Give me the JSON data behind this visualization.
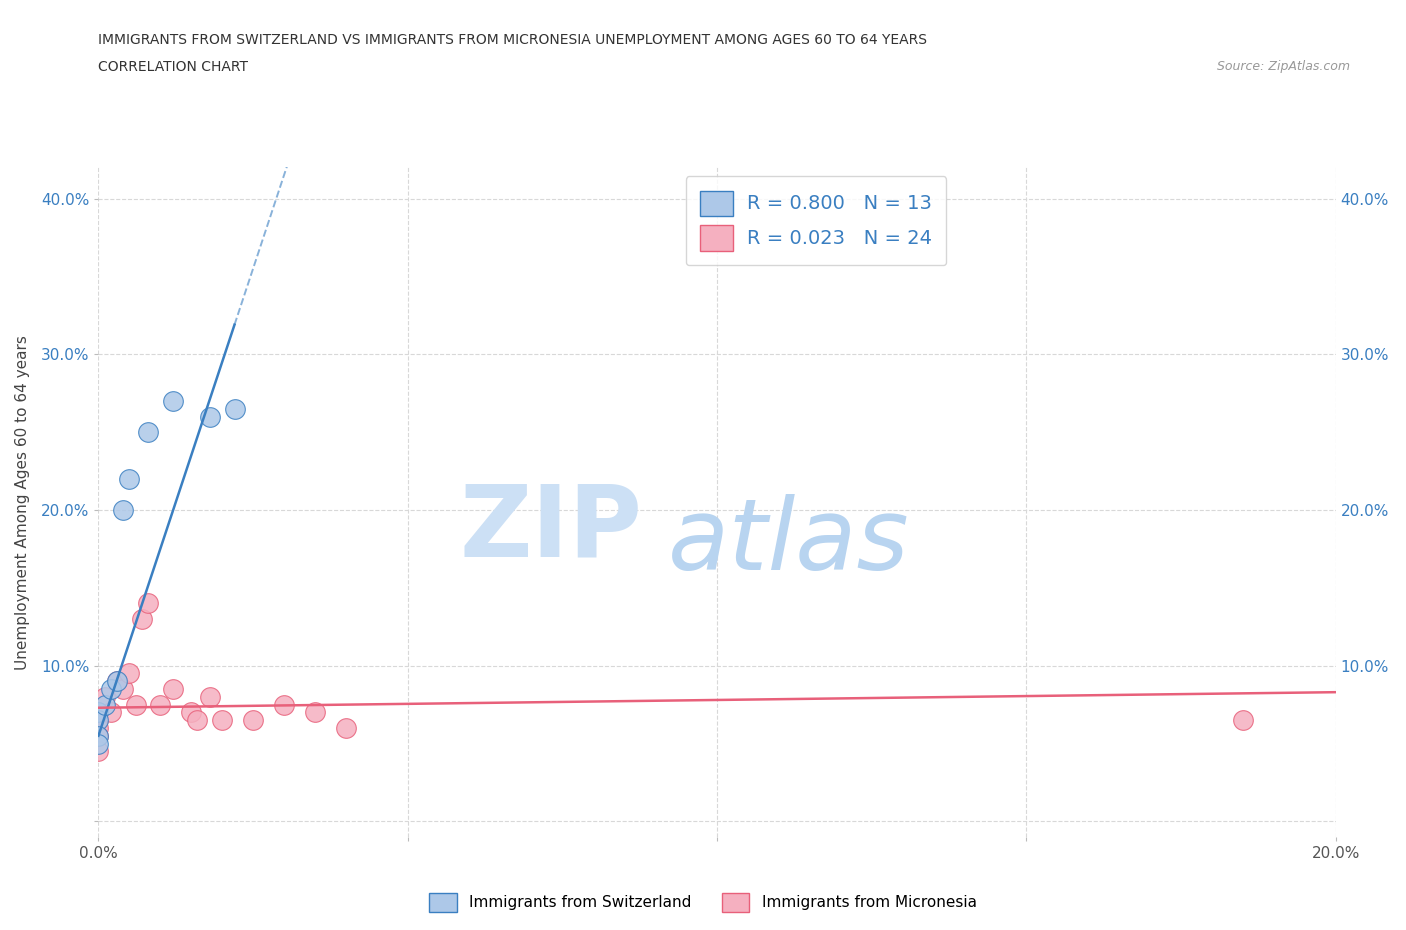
{
  "title_line1": "IMMIGRANTS FROM SWITZERLAND VS IMMIGRANTS FROM MICRONESIA UNEMPLOYMENT AMONG AGES 60 TO 64 YEARS",
  "title_line2": "CORRELATION CHART",
  "source_text": "Source: ZipAtlas.com",
  "ylabel": "Unemployment Among Ages 60 to 64 years",
  "xlim": [
    0.0,
    0.2
  ],
  "ylim": [
    -0.01,
    0.42
  ],
  "xticks": [
    0.0,
    0.05,
    0.1,
    0.15,
    0.2
  ],
  "xtick_labels": [
    "0.0%",
    "",
    "",
    "",
    "20.0%"
  ],
  "yticks": [
    0.0,
    0.1,
    0.2,
    0.3,
    0.4
  ],
  "ytick_labels": [
    "",
    "10.0%",
    "20.0%",
    "30.0%",
    "40.0%"
  ],
  "switzerland_color": "#adc8e8",
  "micronesia_color": "#f5b0c0",
  "trendline_switzerland_color": "#3a7fc1",
  "trendline_micronesia_color": "#e8607a",
  "R_switzerland": 0.8,
  "N_switzerland": 13,
  "R_micronesia": 0.023,
  "N_micronesia": 24,
  "switzerland_x": [
    0.0,
    0.0,
    0.0,
    0.0,
    0.001,
    0.002,
    0.003,
    0.004,
    0.005,
    0.008,
    0.012,
    0.018,
    0.022
  ],
  "switzerland_y": [
    0.07,
    0.065,
    0.055,
    0.05,
    0.075,
    0.085,
    0.09,
    0.2,
    0.22,
    0.25,
    0.27,
    0.26,
    0.265
  ],
  "micronesia_x": [
    0.0,
    0.0,
    0.0,
    0.0,
    0.0,
    0.001,
    0.002,
    0.003,
    0.004,
    0.005,
    0.006,
    0.007,
    0.008,
    0.01,
    0.012,
    0.015,
    0.016,
    0.018,
    0.02,
    0.025,
    0.03,
    0.035,
    0.04,
    0.185
  ],
  "micronesia_y": [
    0.07,
    0.065,
    0.06,
    0.055,
    0.045,
    0.08,
    0.07,
    0.09,
    0.085,
    0.095,
    0.075,
    0.13,
    0.14,
    0.075,
    0.085,
    0.07,
    0.065,
    0.08,
    0.065,
    0.065,
    0.075,
    0.07,
    0.06,
    0.065
  ],
  "grid_color": "#d8d8d8",
  "grid_style": "--",
  "background_color": "#ffffff",
  "watermark_zip_color": "#cce0f5",
  "watermark_atlas_color": "#b8d4f0"
}
